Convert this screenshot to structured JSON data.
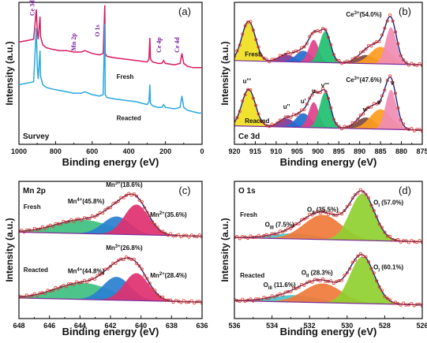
{
  "chart_data": [
    {
      "type": "line",
      "panel_label": "(a)",
      "corner_label": "Survey",
      "xlabel": "Binding energy (eV)",
      "ylabel": "Intensity (a.u.)",
      "xlim": [
        1000,
        0
      ],
      "x_ticks": [
        "1000",
        "800",
        "600",
        "400",
        "200",
        "0"
      ],
      "series": [
        {
          "name": "Fresh",
          "color": "#d81b60",
          "x": [
            1000,
            960,
            920,
            905,
            900,
            895,
            885,
            882,
            870,
            850,
            820,
            780,
            740,
            700,
            660,
            640,
            600,
            560,
            540,
            531,
            529,
            520,
            480,
            420,
            360,
            300,
            290,
            285,
            282,
            270,
            240,
            220,
            210,
            200,
            150,
            120,
            110,
            100,
            80,
            50,
            20,
            0
          ],
          "y": [
            0.72,
            0.73,
            0.74,
            0.95,
            0.8,
            0.74,
            0.9,
            0.76,
            0.7,
            0.68,
            0.67,
            0.66,
            0.66,
            0.65,
            0.65,
            0.66,
            0.64,
            0.63,
            0.64,
            0.98,
            0.64,
            0.62,
            0.61,
            0.6,
            0.59,
            0.58,
            0.6,
            0.75,
            0.6,
            0.58,
            0.57,
            0.57,
            0.59,
            0.57,
            0.56,
            0.57,
            0.64,
            0.57,
            0.55,
            0.54,
            0.54,
            0.54
          ]
        },
        {
          "name": "Reacted",
          "color": "#29a8e0",
          "x": [
            1000,
            960,
            920,
            905,
            900,
            895,
            885,
            882,
            870,
            850,
            820,
            780,
            740,
            700,
            660,
            640,
            600,
            560,
            540,
            531,
            529,
            520,
            480,
            420,
            360,
            300,
            290,
            285,
            282,
            270,
            240,
            220,
            210,
            200,
            150,
            120,
            110,
            100,
            80,
            50,
            20,
            0
          ],
          "y": [
            0.42,
            0.43,
            0.44,
            0.82,
            0.55,
            0.46,
            0.66,
            0.48,
            0.42,
            0.4,
            0.39,
            0.38,
            0.37,
            0.36,
            0.36,
            0.37,
            0.35,
            0.34,
            0.35,
            0.85,
            0.35,
            0.33,
            0.32,
            0.31,
            0.3,
            0.28,
            0.3,
            0.42,
            0.29,
            0.27,
            0.26,
            0.26,
            0.28,
            0.26,
            0.25,
            0.26,
            0.34,
            0.26,
            0.24,
            0.23,
            0.22,
            0.22
          ]
        }
      ],
      "peak_labels": [
        {
          "text": "Ce 3d",
          "x": 915,
          "level": 0.96
        },
        {
          "text": "Mn 2p",
          "x": 690,
          "level": 0.72
        },
        {
          "text": "O 1s",
          "x": 560,
          "level": 0.8
        },
        {
          "text": "Ce 4p",
          "x": 225,
          "level": 0.7
        },
        {
          "text": "Ce 4d",
          "x": 125,
          "level": 0.7
        }
      ],
      "series_labels": [
        {
          "text": "Fresh",
          "x": 420,
          "level": 0.46
        },
        {
          "text": "Reacted",
          "x": 400,
          "level": 0.17
        }
      ]
    },
    {
      "type": "area",
      "panel_label": "(b)",
      "corner_label": "Ce 3d",
      "xlabel": "Binding energy (eV)",
      "ylabel": "Intensity (a.u.)",
      "xlim": [
        920,
        875
      ],
      "x_ticks": [
        "920",
        "915",
        "910",
        "905",
        "900",
        "895",
        "890",
        "885",
        "880",
        "875"
      ],
      "spectra": [
        {
          "name": "Fresh",
          "offset": 0.56,
          "peaks": [
            {
              "center": 916.6,
              "height": 0.28,
              "width": 1.6,
              "color": "#f0e020"
            },
            {
              "center": 907.5,
              "height": 0.05,
              "width": 1.8,
              "color": "#7a3a9a"
            },
            {
              "center": 903.5,
              "height": 0.08,
              "width": 1.8,
              "color": "#1f6fd0"
            },
            {
              "center": 901.0,
              "height": 0.16,
              "width": 1.2,
              "color": "#e0408a"
            },
            {
              "center": 898.3,
              "height": 0.22,
              "width": 1.3,
              "color": "#20c070"
            },
            {
              "center": 888.5,
              "height": 0.06,
              "width": 2.2,
              "color": "#7a4a40"
            },
            {
              "center": 885.0,
              "height": 0.12,
              "width": 2.5,
              "color": "#ff9c20"
            },
            {
              "center": 882.5,
              "height": 0.26,
              "width": 1.3,
              "color": "#f08cb4"
            }
          ]
        },
        {
          "name": "Reacted",
          "offset": 0.1,
          "peaks": [
            {
              "center": 916.6,
              "height": 0.26,
              "width": 1.6,
              "color": "#f0e020"
            },
            {
              "center": 907.5,
              "height": 0.06,
              "width": 1.8,
              "color": "#7a3a9a"
            },
            {
              "center": 903.5,
              "height": 0.1,
              "width": 1.8,
              "color": "#1f6fd0"
            },
            {
              "center": 901.0,
              "height": 0.18,
              "width": 1.2,
              "color": "#e0408a"
            },
            {
              "center": 898.3,
              "height": 0.25,
              "width": 1.3,
              "color": "#20c070"
            },
            {
              "center": 888.5,
              "height": 0.08,
              "width": 2.2,
              "color": "#7a4a40"
            },
            {
              "center": 885.0,
              "height": 0.14,
              "width": 2.5,
              "color": "#ff9c20"
            },
            {
              "center": 882.5,
              "height": 0.28,
              "width": 1.3,
              "color": "#f08cb4"
            }
          ]
        }
      ],
      "labels": [
        {
          "text": "Ce3+(54.0%)",
          "x": 889,
          "level": 0.9
        },
        {
          "text": "Fresh",
          "x": 917.5,
          "level": 0.62
        },
        {
          "text": "Ce3+(47.6%)",
          "x": 889,
          "level": 0.44
        },
        {
          "text": "Reacted",
          "x": 917.5,
          "level": 0.15
        },
        {
          "text": "u'''",
          "x": 917,
          "level": 0.43
        },
        {
          "text": "u''",
          "x": 907.5,
          "level": 0.25
        },
        {
          "text": "u'",
          "x": 903.5,
          "level": 0.29
        },
        {
          "text": "u",
          "x": 901,
          "level": 0.36
        },
        {
          "text": "v'''",
          "x": 898.3,
          "level": 0.4
        },
        {
          "text": "v''",
          "x": 888.5,
          "level": 0.23
        },
        {
          "text": "v'",
          "x": 885.2,
          "level": 0.28
        },
        {
          "text": "v",
          "x": 882.2,
          "level": 0.42
        }
      ]
    },
    {
      "type": "area",
      "panel_label": "(c)",
      "corner_label": "Mn 2p",
      "xlabel": "Binding energy (eV)",
      "ylabel": "Intensity (a.u.)",
      "xlim": [
        648,
        636
      ],
      "x_ticks": [
        "648",
        "646",
        "644",
        "642",
        "640",
        "638",
        "636"
      ],
      "spectra": [
        {
          "name": "Fresh",
          "offset": 0.6,
          "peaks": [
            {
              "center": 643.8,
              "height": 0.1,
              "width": 1.8,
              "color": "#3ec080"
            },
            {
              "center": 641.6,
              "height": 0.13,
              "width": 0.9,
              "color": "#2a7fd0"
            },
            {
              "center": 640.3,
              "height": 0.22,
              "width": 0.8,
              "color": "#e0306f"
            }
          ]
        },
        {
          "name": "Reacted",
          "offset": 0.12,
          "peaks": [
            {
              "center": 643.8,
              "height": 0.12,
              "width": 1.8,
              "color": "#3ec080"
            },
            {
              "center": 641.6,
              "height": 0.17,
              "width": 0.9,
              "color": "#2a7fd0"
            },
            {
              "center": 640.3,
              "height": 0.2,
              "width": 0.8,
              "color": "#e0306f"
            }
          ]
        }
      ],
      "labels": [
        {
          "text": "Mn3+(18.6%)",
          "x": 641.1,
          "level": 0.96
        },
        {
          "text": "Mn4+(45.8%)",
          "x": 643.6,
          "level": 0.84
        },
        {
          "text": "Mn2+(35.6%)",
          "x": 638.2,
          "level": 0.74
        },
        {
          "text": "Fresh",
          "x": 647.7,
          "level": 0.8
        },
        {
          "text": "Mn3+(26.8%)",
          "x": 641.1,
          "level": 0.5
        },
        {
          "text": "Mn4+(44.8%)",
          "x": 643.6,
          "level": 0.33
        },
        {
          "text": "Mn2+(28.4%)",
          "x": 638.2,
          "level": 0.3
        },
        {
          "text": "Reacted",
          "x": 647.7,
          "level": 0.34
        }
      ]
    },
    {
      "type": "area",
      "panel_label": "(d)",
      "corner_label": "O 1s",
      "xlabel": "Binding energy (eV)",
      "ylabel": "Intensity (a.u.)",
      "xlim": [
        536,
        526
      ],
      "x_ticks": [
        "536",
        "534",
        "532",
        "530",
        "528",
        "526"
      ],
      "spectra": [
        {
          "name": "Fresh",
          "offset": 0.56,
          "peaks": [
            {
              "center": 532.8,
              "height": 0.04,
              "width": 1.2,
              "color": "#49c4c8"
            },
            {
              "center": 531.3,
              "height": 0.18,
              "width": 1.0,
              "color": "#f07a3a"
            },
            {
              "center": 529.2,
              "height": 0.34,
              "width": 0.65,
              "color": "#8fd030"
            }
          ]
        },
        {
          "name": "Reacted",
          "offset": 0.1,
          "peaks": [
            {
              "center": 532.8,
              "height": 0.05,
              "width": 1.2,
              "color": "#49c4c8"
            },
            {
              "center": 531.3,
              "height": 0.14,
              "width": 1.0,
              "color": "#f07a3a"
            },
            {
              "center": 529.2,
              "height": 0.34,
              "width": 0.65,
              "color": "#8fd030"
            }
          ]
        }
      ],
      "labels": [
        {
          "text": "OII (35.5%)",
          "x": 531.3,
          "level": 0.78
        },
        {
          "text": "OIII (7.5%)",
          "x": 533.6,
          "level": 0.67
        },
        {
          "text": "OI (57.0%)",
          "x": 527.8,
          "level": 0.83
        },
        {
          "text": "Fresh",
          "x": 535.7,
          "level": 0.74
        },
        {
          "text": "OII (28.3%)",
          "x": 531.6,
          "level": 0.32
        },
        {
          "text": "OIII (11.6%)",
          "x": 533.6,
          "level": 0.23
        },
        {
          "text": "OI (60.1%)",
          "x": 527.8,
          "level": 0.36
        },
        {
          "text": "Reacted",
          "x": 535.7,
          "level": 0.3
        }
      ]
    }
  ]
}
